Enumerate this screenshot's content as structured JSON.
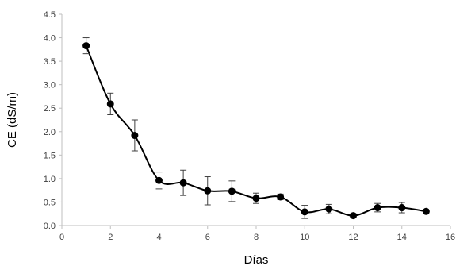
{
  "chart_data": {
    "type": "line",
    "title": "",
    "xlabel": "Días",
    "ylabel": "CE (dS/m)",
    "xlim": [
      0,
      16
    ],
    "ylim": [
      0,
      4.5
    ],
    "x_ticks": [
      "0",
      "2",
      "4",
      "6",
      "8",
      "10",
      "12",
      "14",
      "16"
    ],
    "y_ticks": [
      "0.0",
      "0.5",
      "1.0",
      "1.5",
      "2.0",
      "2.5",
      "3.0",
      "3.5",
      "4.0",
      "4.5"
    ],
    "grid": false,
    "legend": "none",
    "smooth_line": true,
    "series": [
      {
        "color": "#000000",
        "x": [
          1,
          2,
          3,
          4,
          5,
          6,
          7,
          8,
          9,
          10,
          11,
          12,
          13,
          14,
          15
        ],
        "y": [
          3.83,
          2.59,
          1.92,
          0.96,
          0.91,
          0.74,
          0.73,
          0.58,
          0.61,
          0.29,
          0.35,
          0.21,
          0.38,
          0.38,
          0.3
        ],
        "error": [
          0.17,
          0.23,
          0.33,
          0.18,
          0.27,
          0.3,
          0.22,
          0.11,
          0.06,
          0.14,
          0.1,
          0.04,
          0.09,
          0.11,
          0.03
        ]
      }
    ]
  }
}
